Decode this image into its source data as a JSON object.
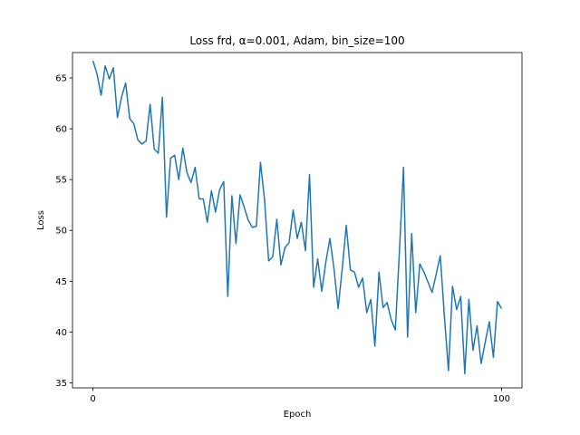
{
  "chart_data": {
    "type": "line",
    "title": "Loss frd, α=0.001, Adam, bin_size=100",
    "xlabel": "Epoch",
    "ylabel": "Loss",
    "xlim": [
      -5,
      105
    ],
    "ylim": [
      34.5,
      67.5
    ],
    "xticks": [
      0,
      100
    ],
    "yticks": [
      35,
      40,
      45,
      50,
      55,
      60,
      65
    ],
    "grid": false,
    "legend": "none",
    "color": "#1f77b4",
    "series": [
      {
        "x": [
          0,
          1,
          2,
          3,
          4,
          5,
          6,
          7,
          8,
          9,
          10,
          11,
          12,
          13,
          14,
          15,
          16,
          17,
          18,
          19,
          20,
          21,
          22,
          23,
          24,
          25,
          26,
          27,
          28,
          29,
          30,
          31,
          32,
          33,
          34,
          35,
          36,
          37,
          38,
          39,
          40,
          41,
          42,
          43,
          44,
          45,
          46,
          47,
          48,
          49,
          50,
          51,
          52,
          53,
          54,
          55,
          56,
          57,
          58,
          59,
          60,
          61,
          62,
          63,
          64,
          65,
          66,
          67,
          68,
          69,
          70,
          71,
          72,
          73,
          74,
          75,
          76,
          77,
          78,
          79,
          80,
          81,
          82,
          83,
          84,
          85,
          86,
          87,
          88,
          89,
          90,
          91,
          92,
          93,
          94,
          95,
          96,
          97,
          98,
          99,
          100
        ],
        "y": [
          66.7,
          65.4,
          63.3,
          66.2,
          64.9,
          66.0,
          61.1,
          63.1,
          64.5,
          61.0,
          60.5,
          58.9,
          58.5,
          58.8,
          62.4,
          58.0,
          57.6,
          63.1,
          51.3,
          57.1,
          57.4,
          55.0,
          58.1,
          55.7,
          54.7,
          56.2,
          53.1,
          53.1,
          50.8,
          53.9,
          51.8,
          54.0,
          54.8,
          43.5,
          53.4,
          48.7,
          53.5,
          52.3,
          51.0,
          50.3,
          50.4,
          56.7,
          53.0,
          47.0,
          47.4,
          51.1,
          46.6,
          48.3,
          48.8,
          52.0,
          49.2,
          50.8,
          48.0,
          55.5,
          44.4,
          47.2,
          44.0,
          46.9,
          49.2,
          46.2,
          42.3,
          46.2,
          50.5,
          46.1,
          45.9,
          44.4,
          45.3,
          41.9,
          43.2,
          38.6,
          45.9,
          42.4,
          42.9,
          41.2,
          40.2,
          47.9,
          56.2,
          39.5,
          49.7,
          41.9,
          46.7,
          45.9,
          44.9,
          43.9,
          45.7,
          47.5,
          41.6,
          36.2,
          44.5,
          42.2,
          43.5,
          35.9,
          43.2,
          38.2,
          40.6,
          36.9,
          39.0,
          41.0,
          37.5,
          43.0,
          42.3
        ]
      }
    ]
  }
}
